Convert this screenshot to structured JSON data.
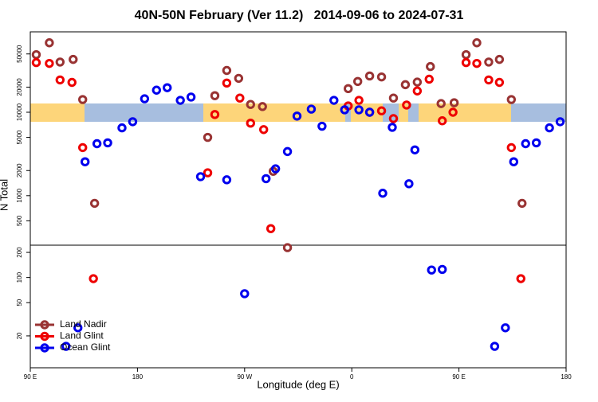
{
  "chart_data": {
    "type": "scatter",
    "title": "40N-50N February (Ver 11.2)   2014-09-06 to 2024-07-31",
    "x_label": "Longitude (deg E)",
    "y_label": "N Total",
    "log_y": true,
    "legend": "bottom-left",
    "xlim": [
      90,
      540
    ],
    "xticks": [
      {
        "value": 90,
        "label": "90 E"
      },
      {
        "value": 180,
        "label": "180"
      },
      {
        "value": 270,
        "label": "90 W"
      },
      {
        "value": 360,
        "label": "0"
      },
      {
        "value": 450,
        "label": "90 E"
      },
      {
        "value": 540,
        "label": "180"
      }
    ],
    "panels": [
      {
        "ylim": [
          255,
          92000
        ],
        "yticks": [
          500,
          1000,
          2000,
          5000,
          10000,
          20000,
          50000
        ]
      },
      {
        "ylim": [
          8.3,
          244
        ],
        "yticks": [
          20,
          50,
          100,
          200
        ]
      }
    ],
    "series": [
      {
        "name": "Land Nadir",
        "color": "#993333",
        "x": [
          95,
          106,
          115,
          126,
          134,
          144,
          239,
          245,
          255,
          265,
          275,
          285,
          294,
          306,
          357,
          365,
          375,
          385,
          395,
          405,
          415,
          426,
          435,
          446,
          456,
          465,
          475,
          484,
          494,
          503
        ],
        "values": [
          49000,
          68000,
          40000,
          43000,
          14200,
          810,
          5000,
          15800,
          31700,
          25500,
          12400,
          11700,
          1960,
          228,
          19200,
          23400,
          27200,
          26500,
          14800,
          21400,
          23000,
          35300,
          12700,
          13000,
          49000,
          68000,
          40000,
          43000,
          14200,
          810
        ]
      },
      {
        "name": "Land Glint",
        "color": "#ee0000",
        "x": [
          95,
          106,
          115,
          125,
          134,
          143,
          239,
          245,
          255,
          266,
          275,
          286,
          292,
          357,
          366,
          375,
          385,
          395,
          406,
          415,
          425,
          436,
          445,
          456,
          465,
          475,
          484,
          494,
          502
        ],
        "values": [
          39400,
          38500,
          24400,
          22800,
          3770,
          97,
          1880,
          9400,
          22400,
          14800,
          7400,
          6200,
          403,
          11900,
          13900,
          10000,
          10400,
          8400,
          12200,
          18000,
          24900,
          7900,
          10000,
          39400,
          38500,
          24400,
          22800,
          3770,
          97
        ]
      },
      {
        "name": "Ocean Glint",
        "color": "#0000ee",
        "x": [
          130,
          120,
          136,
          146,
          155,
          167,
          176,
          186,
          196,
          205,
          216,
          225,
          233,
          255,
          270,
          288,
          296,
          306,
          314,
          326,
          335,
          345,
          354,
          366,
          375,
          386,
          394,
          408,
          413,
          427,
          436,
          480,
          489,
          496,
          506,
          515,
          526,
          535
        ],
        "values": [
          25,
          15,
          2550,
          4200,
          4300,
          6500,
          7700,
          14500,
          18400,
          19700,
          13900,
          15200,
          1690,
          1550,
          64,
          1600,
          2100,
          3380,
          9000,
          10900,
          6800,
          13900,
          10700,
          10700,
          10000,
          1070,
          6600,
          1390,
          3540,
          123,
          125,
          15,
          25,
          2550,
          4200,
          4300,
          6500,
          7700
        ]
      }
    ]
  }
}
